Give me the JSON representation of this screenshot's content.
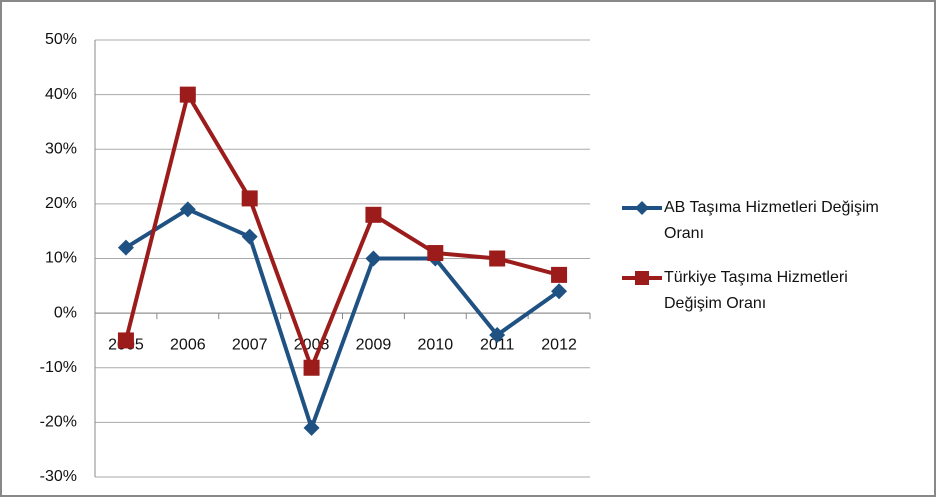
{
  "chart_data": {
    "type": "line",
    "categories": [
      "2005",
      "2006",
      "2007",
      "2008",
      "2009",
      "2010",
      "2011",
      "2012"
    ],
    "series": [
      {
        "name": "AB Taşıma Hizmetleri Değişim Oranı",
        "color": "#1f5282",
        "marker": "diamond",
        "values": [
          12,
          19,
          14,
          -21,
          10,
          10,
          -4,
          4
        ]
      },
      {
        "name": "Türkiye Taşıma Hizmetleri Değişim Oranı",
        "color": "#9c1c1c",
        "marker": "square",
        "values": [
          -5,
          40,
          21,
          -10,
          18,
          11,
          10,
          7
        ]
      }
    ],
    "ylim": [
      -30,
      50
    ],
    "yticks": [
      {
        "value": -30,
        "label": "-30%"
      },
      {
        "value": -20,
        "label": "-20%"
      },
      {
        "value": -10,
        "label": "-10%"
      },
      {
        "value": 0,
        "label": "0%"
      },
      {
        "value": 10,
        "label": "10%"
      },
      {
        "value": 20,
        "label": "20%"
      },
      {
        "value": 30,
        "label": "30%"
      },
      {
        "value": 40,
        "label": "40%"
      },
      {
        "value": 50,
        "label": "50%"
      }
    ],
    "grid": true,
    "legend": "right"
  }
}
